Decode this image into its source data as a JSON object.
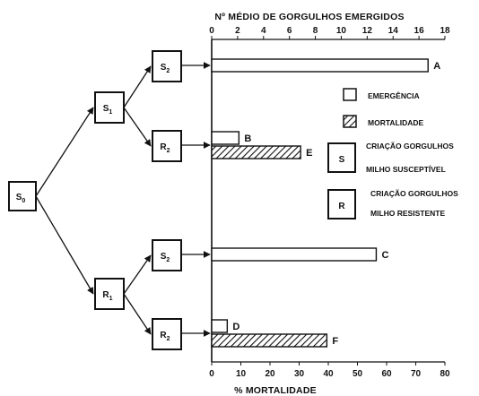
{
  "chart_data": {
    "type": "bar",
    "orientation": "horizontal",
    "top_axis": {
      "label": "Nº MÉDIO DE GORGULHOS EMERGIDOS",
      "range": [
        0,
        18
      ],
      "ticks": [
        "0",
        "2",
        "4",
        "6",
        "8",
        "10",
        "12",
        "14",
        "16",
        "18"
      ]
    },
    "bottom_axis": {
      "label": "% MORTALIDADE",
      "range": [
        0,
        80
      ],
      "ticks": [
        "0",
        "10",
        "20",
        "30",
        "40",
        "50",
        "60",
        "70",
        "80"
      ]
    },
    "series": [
      {
        "name": "EMERGÊNCIA",
        "axis": "top",
        "pattern": "open"
      },
      {
        "name": "MORTALIDADE",
        "axis": "bottom",
        "pattern": "hatched"
      }
    ],
    "bars": [
      {
        "row": 1,
        "series": "EMERGÊNCIA",
        "value": 16.7,
        "label": "A"
      },
      {
        "row": 2,
        "series": "EMERGÊNCIA",
        "value": 2.1,
        "label": "B"
      },
      {
        "row": 2,
        "series": "MORTALIDADE",
        "value": 30.5,
        "label": "E"
      },
      {
        "row": 3,
        "series": "EMERGÊNCIA",
        "value": 12.7,
        "label": "C"
      },
      {
        "row": 4,
        "series": "EMERGÊNCIA",
        "value": 1.2,
        "label": "D"
      },
      {
        "row": 4,
        "series": "MORTALIDADE",
        "value": 39.5,
        "label": "F"
      }
    ],
    "legend": {
      "placement": "right",
      "items": [
        {
          "symbol": "",
          "pattern": "open",
          "lines": [
            "EMERGÊNCIA"
          ]
        },
        {
          "symbol": "",
          "pattern": "hatched",
          "lines": [
            "MORTALIDADE"
          ]
        },
        {
          "symbol": "S",
          "pattern": "letter",
          "lines": [
            "CRIAÇÃO GORGULHOS",
            "MILHO SUSCEPTÍVEL"
          ]
        },
        {
          "symbol": "R",
          "pattern": "letter",
          "lines": [
            "CRIAÇÃO GORGULHOS",
            "MILHO RESISTENTE"
          ]
        }
      ]
    },
    "tree": {
      "nodes": [
        {
          "id": "s0",
          "label": "S",
          "sub": "0"
        },
        {
          "id": "s1",
          "label": "S",
          "sub": "1"
        },
        {
          "id": "r1",
          "label": "R",
          "sub": "1"
        },
        {
          "id": "s2a",
          "label": "S",
          "sub": "2",
          "row": 1
        },
        {
          "id": "r2a",
          "label": "R",
          "sub": "2",
          "row": 2
        },
        {
          "id": "s2b",
          "label": "S",
          "sub": "2",
          "row": 3
        },
        {
          "id": "r2b",
          "label": "R",
          "sub": "2",
          "row": 4
        }
      ],
      "edges": [
        [
          "s0",
          "s1"
        ],
        [
          "s0",
          "r1"
        ],
        [
          "s1",
          "s2a"
        ],
        [
          "s1",
          "r2a"
        ],
        [
          "r1",
          "s2b"
        ],
        [
          "r1",
          "r2b"
        ]
      ]
    },
    "grid": false
  }
}
